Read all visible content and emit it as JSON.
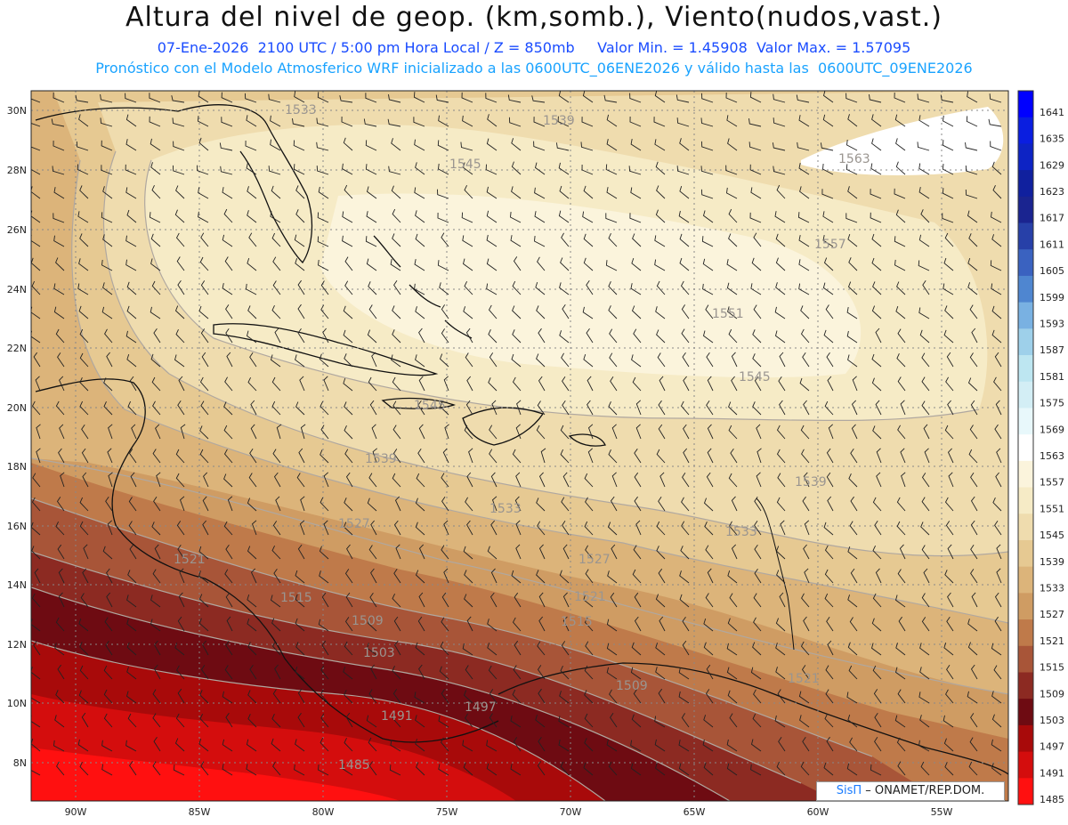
{
  "header": {
    "title": "Altura del nivel de geop. (km,somb.), Viento(nudos,vast.)",
    "line1_date": "07-Ene-2026  2100 UTC / 5:00 pm Hora Local / Z = 850mb",
    "line1_minmax": "Valor Min. = 1.45908  Valor Max. = 1.57095",
    "line2": "Pronóstico con el Modelo Atmosferico WRF inicializado a las 0600UTC_06ENE2026 y válido hasta las  0600UTC_09ENE2026"
  },
  "map": {
    "lat_labels": [
      "30N",
      "28N",
      "26N",
      "24N",
      "22N",
      "20N",
      "18N",
      "16N",
      "14N",
      "12N",
      "10N",
      "8N"
    ],
    "lon_labels": [
      "90W",
      "85W",
      "80W",
      "75W",
      "70W",
      "65W",
      "60W",
      "55W"
    ],
    "contour_labels": [
      "1533",
      "1539",
      "1545",
      "1563",
      "1557",
      "1551",
      "1545",
      "1539",
      "1533",
      "1527",
      "1521",
      "1515",
      "1509",
      "1503",
      "1497",
      "1491",
      "1485",
      "1545",
      "1539",
      "1533",
      "1527",
      "1521",
      "1515",
      "1509",
      "1521"
    ]
  },
  "colorbar": {
    "labels": [
      "1641",
      "1635",
      "1629",
      "1623",
      "1617",
      "1611",
      "1605",
      "1599",
      "1593",
      "1587",
      "1581",
      "1575",
      "1569",
      "1563",
      "1557",
      "1551",
      "1545",
      "1539",
      "1533",
      "1527",
      "1521",
      "1515",
      "1509",
      "1503",
      "1497",
      "1491",
      "1485"
    ],
    "colors": [
      "#0000ff",
      "#0a1ee0",
      "#0d23c4",
      "#10209e",
      "#1a2490",
      "#2740a8",
      "#3a62c0",
      "#4f86d0",
      "#79b1e2",
      "#9ed0ea",
      "#bde6f1",
      "#d3eef5",
      "#e8f8fb",
      "#ffffff",
      "#fbf4dc",
      "#f6ebc6",
      "#efdcae",
      "#e6c992",
      "#dcb47a",
      "#cf9c63",
      "#bf7a4a",
      "#a85538",
      "#8c2a22",
      "#6e0b12",
      "#a80a0a",
      "#d40d0d",
      "#ff1010"
    ]
  },
  "credit": {
    "brand": "SisΠ",
    "text": "– ONAMET/REP.DOM."
  }
}
